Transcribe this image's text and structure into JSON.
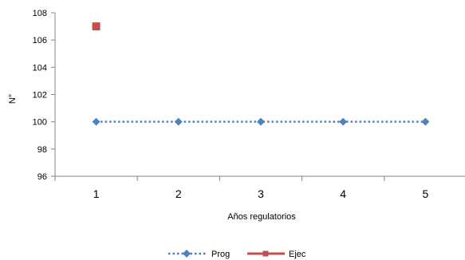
{
  "chart_data": {
    "type": "line",
    "title": "",
    "xlabel": "Años regulatorios",
    "ylabel": "N°",
    "categories": [
      "1",
      "2",
      "3",
      "4",
      "5"
    ],
    "ylim": [
      96,
      108
    ],
    "yticks": [
      96,
      98,
      100,
      102,
      104,
      106,
      108
    ],
    "grid": false,
    "legend_position": "bottom",
    "series": [
      {
        "name": "Prog",
        "values": [
          100,
          100,
          100,
          100,
          100
        ],
        "color": "#4F81BD",
        "line": "dotted",
        "marker": "diamond"
      },
      {
        "name": "Ejec",
        "values": [
          107,
          null,
          null,
          null,
          null
        ],
        "color": "#C0504D",
        "line": "solid",
        "marker": "square"
      }
    ]
  }
}
